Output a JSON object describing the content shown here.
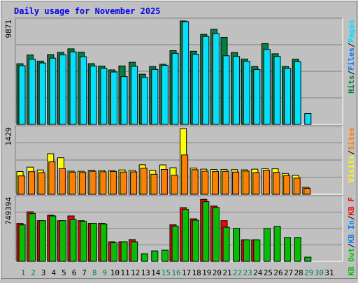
{
  "chart_data": [
    {
      "type": "bar",
      "panel": "pages-files-hits",
      "title": "Daily usage for November 2025",
      "categories": [
        "1",
        "2",
        "3",
        "4",
        "5",
        "6",
        "7",
        "8",
        "9",
        "10",
        "11",
        "12",
        "13",
        "14",
        "15",
        "16",
        "17",
        "18",
        "19",
        "20",
        "21",
        "22",
        "23",
        "24",
        "25",
        "26",
        "27",
        "28",
        "29",
        "30",
        "31"
      ],
      "y_tick_label": "9871",
      "ylim": [
        0,
        9871
      ],
      "grid": true,
      "series": [
        {
          "name": "Hits",
          "color": "#008040",
          "values": [
            5790,
            6620,
            6040,
            6660,
            6880,
            7210,
            6890,
            5800,
            5570,
            5200,
            5580,
            5930,
            4790,
            5520,
            5740,
            7040,
            9871,
            6980,
            8590,
            9080,
            8300,
            6860,
            6240,
            5520,
            7710,
            6740,
            5520,
            6220,
            0,
            0,
            0
          ]
        },
        {
          "name": "Files",
          "color": "#0080FF",
          "values": [
            0,
            0,
            0,
            0,
            0,
            0,
            0,
            0,
            0,
            0,
            0,
            0,
            0,
            0,
            0,
            0,
            0,
            0,
            0,
            0,
            0,
            0,
            0,
            0,
            0,
            0,
            0,
            0,
            0,
            0,
            0
          ]
        },
        {
          "name": "Pages",
          "color": "#00E0FF",
          "values": [
            5600,
            6210,
            5860,
            6320,
            6630,
            6920,
            6460,
            5570,
            5350,
            5000,
            4560,
            5540,
            4480,
            5240,
            5630,
            6780,
            9800,
            6690,
            8390,
            8660,
            6550,
            6480,
            6010,
            5240,
            7150,
            6480,
            5350,
            5980,
            1030,
            0,
            0
          ]
        }
      ],
      "legend_labels": [
        "Pages",
        "Files",
        "Hits"
      ],
      "legend_separator": "/"
    },
    {
      "type": "bar",
      "panel": "visits-sites",
      "categories": [
        "1",
        "2",
        "3",
        "4",
        "5",
        "6",
        "7",
        "8",
        "9",
        "10",
        "11",
        "12",
        "13",
        "14",
        "15",
        "16",
        "17",
        "18",
        "19",
        "20",
        "21",
        "22",
        "23",
        "24",
        "25",
        "26",
        "27",
        "28",
        "29",
        "30",
        "31"
      ],
      "y_tick_label": "1429",
      "ylim": [
        0,
        1429
      ],
      "grid": true,
      "series": [
        {
          "name": "Visits",
          "color": "#FFFF00",
          "values": [
            495,
            590,
            528,
            881,
            794,
            503,
            499,
            522,
            515,
            515,
            529,
            518,
            641,
            518,
            638,
            577,
            1429,
            571,
            546,
            539,
            538,
            536,
            531,
            546,
            555,
            554,
            452,
            411,
            150,
            0,
            0
          ]
        },
        {
          "name": "Sites",
          "color": "#FF8000",
          "values": [
            400,
            491,
            471,
            705,
            557,
            482,
            475,
            500,
            489,
            495,
            483,
            486,
            568,
            436,
            540,
            413,
            855,
            534,
            501,
            493,
            497,
            483,
            504,
            472,
            522,
            476,
            407,
            351,
            129,
            0,
            0
          ]
        }
      ],
      "legend_labels": [
        "Sites",
        "Visits"
      ],
      "legend_separator": "/"
    },
    {
      "type": "bar",
      "panel": "kbytes",
      "categories": [
        "1",
        "2",
        "3",
        "4",
        "5",
        "6",
        "7",
        "8",
        "9",
        "10",
        "11",
        "12",
        "13",
        "14",
        "15",
        "16",
        "17",
        "18",
        "19",
        "20",
        "21",
        "22",
        "23",
        "24",
        "25",
        "26",
        "27",
        "28",
        "29",
        "30",
        "31"
      ],
      "y_tick_label": "749394",
      "ylim": [
        0,
        749394
      ],
      "grid": true,
      "series": [
        {
          "name": "KB F",
          "color": "#FF0000",
          "values": [
            453000,
            590000,
            485000,
            549000,
            485000,
            541000,
            485000,
            453000,
            453000,
            233000,
            233000,
            259000,
            0,
            0,
            0,
            435000,
            640000,
            507000,
            739000,
            659000,
            485000,
            0,
            257000,
            257000,
            0,
            0,
            0,
            0,
            0,
            0,
            0
          ]
        },
        {
          "name": "KB In",
          "color": "#0080FF",
          "values": [
            0,
            0,
            0,
            0,
            0,
            0,
            0,
            0,
            0,
            0,
            0,
            0,
            0,
            0,
            0,
            0,
            0,
            0,
            0,
            0,
            0,
            0,
            0,
            0,
            0,
            0,
            0,
            0,
            0,
            0,
            0
          ]
        },
        {
          "name": "KB Out",
          "color": "#00C000",
          "values": [
            435000,
            569000,
            485000,
            541000,
            485000,
            499000,
            477000,
            453000,
            445000,
            221000,
            233000,
            233000,
            91000,
            124000,
            133000,
            419000,
            619000,
            491000,
            711000,
            642000,
            407000,
            393000,
            257000,
            257000,
            392000,
            415000,
            284000,
            284000,
            50000,
            0,
            0
          ]
        }
      ],
      "legend_labels": [
        "KB F",
        "KB In",
        "KB Out"
      ],
      "legend_separator": "/"
    }
  ],
  "x_axis": {
    "days": [
      "1",
      "2",
      "3",
      "4",
      "5",
      "6",
      "7",
      "8",
      "9",
      "10",
      "11",
      "12",
      "13",
      "14",
      "15",
      "16",
      "17",
      "18",
      "19",
      "20",
      "21",
      "22",
      "23",
      "24",
      "25",
      "26",
      "27",
      "28",
      "29",
      "30",
      "31"
    ],
    "weekend_days": [
      1,
      2,
      8,
      9,
      15,
      16,
      22,
      23,
      29,
      30
    ],
    "weekday_color": "#000000",
    "weekend_color": "#00805C"
  },
  "colors": {
    "background": "#C0C0C0",
    "panel": "#C0C0C0",
    "title": "#0000FF",
    "grid": "#808080"
  }
}
